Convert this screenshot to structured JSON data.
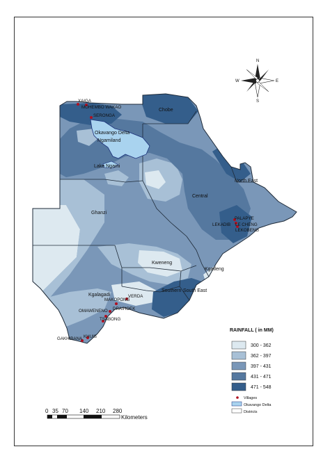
{
  "map": {
    "districts": [
      {
        "name": "Chobe"
      },
      {
        "name": "Okavango Delta"
      },
      {
        "name": "Ngamiland"
      },
      {
        "name": "Lake Ngami"
      },
      {
        "name": "North East"
      },
      {
        "name": "Central"
      },
      {
        "name": "Ghanzi"
      },
      {
        "name": "Kweneng"
      },
      {
        "name": "Kgatleng"
      },
      {
        "name": "Southern"
      },
      {
        "name": "South East"
      },
      {
        "name": "Kgalagadi"
      }
    ],
    "villages": [
      {
        "name": "XAIGA"
      },
      {
        "name": "MOHEMBO WAKAO"
      },
      {
        "name": "SERONGA"
      },
      {
        "name": "PALAPYE"
      },
      {
        "name": "LEKADIB"
      },
      {
        "name": "LE CHENG"
      },
      {
        "name": "LEKOBENG"
      },
      {
        "name": "VERDA"
      },
      {
        "name": "MAKOPONG"
      },
      {
        "name": "DRAIHOEK"
      },
      {
        "name": "OMAWENENO"
      },
      {
        "name": "TSABONG"
      },
      {
        "name": "GAKHIBANA"
      },
      {
        "name": "KHUIS"
      }
    ],
    "colors": {
      "class1": "#dde9f0",
      "class2": "#a8c0d6",
      "class3": "#7a97b8",
      "class4": "#55789f",
      "class5": "#345e8b",
      "village_dot": "#b01020",
      "okavango_delta": "#a9d3ef",
      "district_line": "#1e2a38"
    }
  },
  "compass": {
    "n": "N",
    "s": "S",
    "e": "E",
    "w": "W"
  },
  "legend": {
    "title": "RAINFALL ( in MM)",
    "classes": [
      {
        "label": "300 - 362",
        "color": "#dde9f0"
      },
      {
        "label": "362 - 397",
        "color": "#a8c0d6"
      },
      {
        "label": "397 - 431",
        "color": "#7a97b8"
      },
      {
        "label": "431 - 471",
        "color": "#55789f"
      },
      {
        "label": "471 - 548",
        "color": "#345e8b"
      }
    ],
    "symbols": [
      {
        "label": "Villages"
      },
      {
        "label": "Okavango Delta"
      },
      {
        "label": "Districts"
      }
    ]
  },
  "scale_bar": {
    "ticks": [
      "0",
      "35",
      "70",
      "140",
      "210",
      "280"
    ],
    "unit": "Kilometers"
  }
}
